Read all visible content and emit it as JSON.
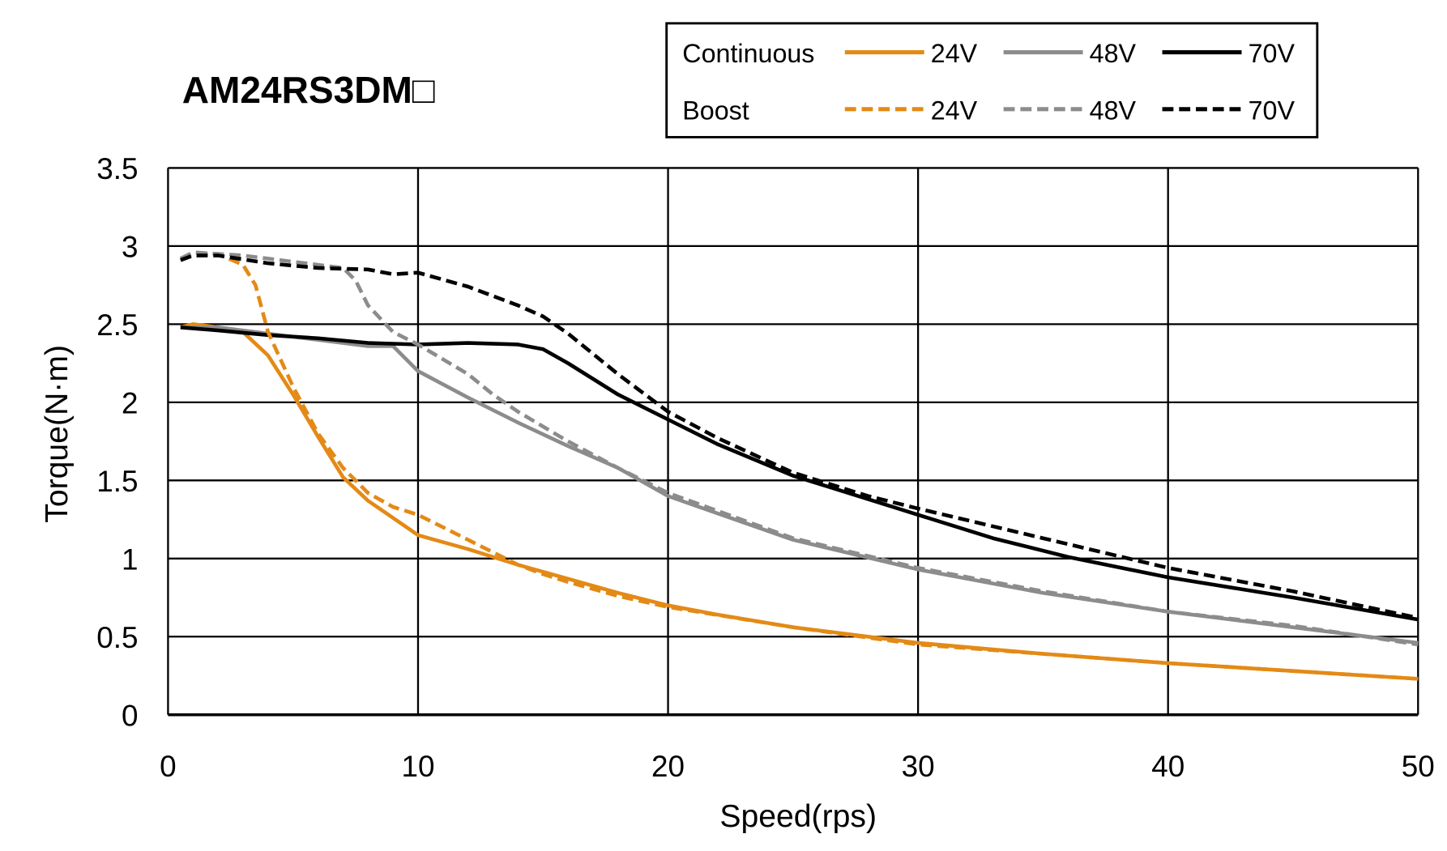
{
  "chart_data": {
    "type": "line",
    "title": "AM24RS3DM□",
    "xlabel": "Speed(rps)",
    "ylabel": "Torque(N·m)",
    "xlim": [
      0,
      50
    ],
    "ylim": [
      0,
      3.5
    ],
    "xticks": [
      0,
      10,
      20,
      30,
      40,
      50
    ],
    "yticks": [
      0,
      0.5,
      1,
      1.5,
      2,
      2.5,
      3,
      3.5
    ],
    "ytick_labels": [
      "0",
      "0.5",
      "1",
      "1.5",
      "2",
      "2.5",
      "3",
      "3.5"
    ],
    "grid": true,
    "legend": {
      "placement": "top-right",
      "row_labels": [
        "Continuous",
        "Boost"
      ]
    },
    "series": [
      {
        "name": "24V",
        "group": "Continuous",
        "color": "#E38A16",
        "dash": false,
        "x": [
          0.5,
          1,
          2,
          3,
          4,
          5,
          6,
          7,
          8,
          9,
          10,
          12,
          14,
          16,
          18,
          20,
          22,
          25,
          28,
          30,
          35,
          40,
          45,
          50
        ],
        "y": [
          2.48,
          2.5,
          2.48,
          2.45,
          2.3,
          2.05,
          1.78,
          1.52,
          1.37,
          1.26,
          1.15,
          1.06,
          0.96,
          0.87,
          0.78,
          0.7,
          0.64,
          0.56,
          0.5,
          0.46,
          0.39,
          0.33,
          0.28,
          0.23
        ]
      },
      {
        "name": "48V",
        "group": "Continuous",
        "color": "#8C8C8C",
        "dash": false,
        "x": [
          0.5,
          2,
          4,
          6,
          8,
          9,
          10,
          12,
          14,
          16,
          18,
          20,
          25,
          30,
          35,
          40,
          45,
          50
        ],
        "y": [
          2.48,
          2.48,
          2.44,
          2.4,
          2.36,
          2.36,
          2.2,
          2.03,
          1.87,
          1.72,
          1.58,
          1.4,
          1.12,
          0.93,
          0.78,
          0.66,
          0.56,
          0.46
        ]
      },
      {
        "name": "70V",
        "group": "Continuous",
        "color": "#000000",
        "dash": false,
        "x": [
          0.5,
          2,
          4,
          6,
          8,
          10,
          12,
          14,
          15,
          16,
          18,
          19,
          20,
          22,
          25,
          28,
          30,
          33,
          36,
          40,
          45,
          50
        ],
        "y": [
          2.48,
          2.46,
          2.43,
          2.41,
          2.38,
          2.37,
          2.38,
          2.37,
          2.34,
          2.25,
          2.05,
          1.97,
          1.89,
          1.73,
          1.53,
          1.38,
          1.28,
          1.13,
          1.01,
          0.88,
          0.75,
          0.61
        ]
      },
      {
        "name": "24V",
        "group": "Boost",
        "color": "#E38A16",
        "dash": true,
        "x": [
          0.5,
          1,
          2,
          3,
          3.5,
          4,
          5,
          6,
          7,
          8,
          9,
          10,
          12,
          14,
          15,
          16,
          18,
          20,
          25,
          30,
          40,
          50
        ],
        "y": [
          2.92,
          2.95,
          2.95,
          2.88,
          2.75,
          2.45,
          2.1,
          1.8,
          1.58,
          1.42,
          1.33,
          1.28,
          1.12,
          0.96,
          0.9,
          0.85,
          0.76,
          0.69,
          0.56,
          0.45,
          0.33,
          0.23
        ]
      },
      {
        "name": "48V",
        "group": "Boost",
        "color": "#8C8C8C",
        "dash": true,
        "x": [
          0.5,
          1,
          3,
          5,
          7,
          7.5,
          8,
          9,
          10,
          12,
          13,
          14,
          16,
          18,
          20,
          25,
          30,
          35,
          40,
          45,
          50
        ],
        "y": [
          2.92,
          2.96,
          2.94,
          2.9,
          2.86,
          2.78,
          2.62,
          2.45,
          2.37,
          2.18,
          2.05,
          1.94,
          1.75,
          1.58,
          1.42,
          1.13,
          0.94,
          0.79,
          0.66,
          0.57,
          0.45
        ]
      },
      {
        "name": "70V",
        "group": "Boost",
        "color": "#000000",
        "dash": true,
        "x": [
          0.5,
          1,
          2,
          4,
          6,
          8,
          9,
          10,
          12,
          14,
          15,
          16,
          18,
          20,
          22,
          25,
          28,
          30,
          35,
          40,
          45,
          50
        ],
        "y": [
          2.91,
          2.94,
          2.94,
          2.89,
          2.86,
          2.85,
          2.82,
          2.83,
          2.74,
          2.62,
          2.55,
          2.44,
          2.18,
          1.94,
          1.77,
          1.55,
          1.4,
          1.32,
          1.13,
          0.94,
          0.79,
          0.62
        ]
      }
    ]
  }
}
